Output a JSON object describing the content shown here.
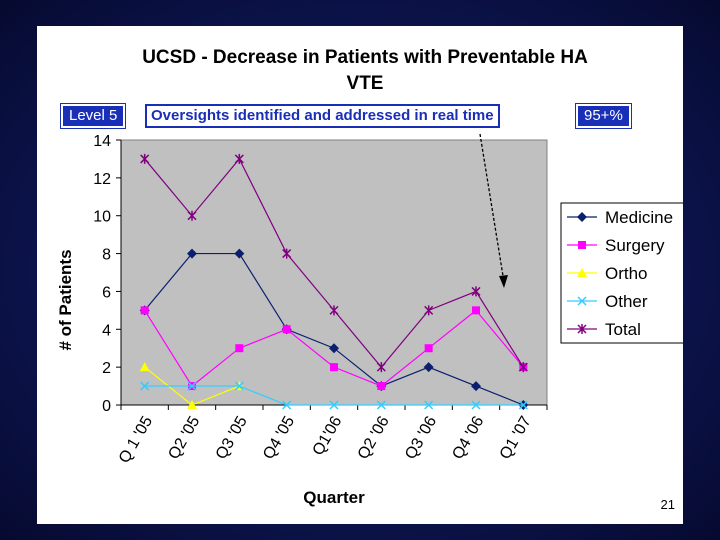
{
  "chart_data": {
    "type": "line",
    "title_line1": "UCSD - Decrease in Patients with Preventable HA",
    "title_line2": "VTE",
    "xlabel": "Quarter",
    "ylabel": "# of Patients",
    "ylim": [
      0,
      14
    ],
    "yticks": [
      0,
      2,
      4,
      6,
      8,
      10,
      12,
      14
    ],
    "grid": false,
    "legend_position": "right",
    "categories": [
      "Q 1 '05",
      "Q2 '05",
      "Q3 '05",
      "Q4 '05",
      "Q1'06",
      "Q2 '06",
      "Q3 '06",
      "Q4 '06",
      "Q1 '07"
    ],
    "series": [
      {
        "name": "Medicine",
        "color": "#0b1f6e",
        "marker": "diamond",
        "values": [
          5,
          8,
          8,
          4,
          3,
          1,
          2,
          1,
          0
        ]
      },
      {
        "name": "Surgery",
        "color": "#ff00ff",
        "marker": "square",
        "values": [
          5,
          1,
          3,
          4,
          2,
          1,
          3,
          5,
          2
        ]
      },
      {
        "name": "Ortho",
        "color": "#ffff00",
        "marker": "triangle",
        "values": [
          2,
          0,
          1,
          null,
          null,
          null,
          null,
          null,
          null
        ]
      },
      {
        "name": "Other",
        "color": "#33ccff",
        "marker": "x",
        "values": [
          1,
          1,
          1,
          0,
          0,
          0,
          0,
          0,
          0
        ]
      },
      {
        "name": "Total",
        "color": "#800080",
        "marker": "star",
        "values": [
          13,
          10,
          13,
          8,
          5,
          2,
          5,
          6,
          2
        ]
      }
    ]
  },
  "annotations": {
    "level_label": "Level 5",
    "oversight_label": "Oversights identified and addressed in real time",
    "percent_label": "95+%"
  },
  "slide_number": "21"
}
